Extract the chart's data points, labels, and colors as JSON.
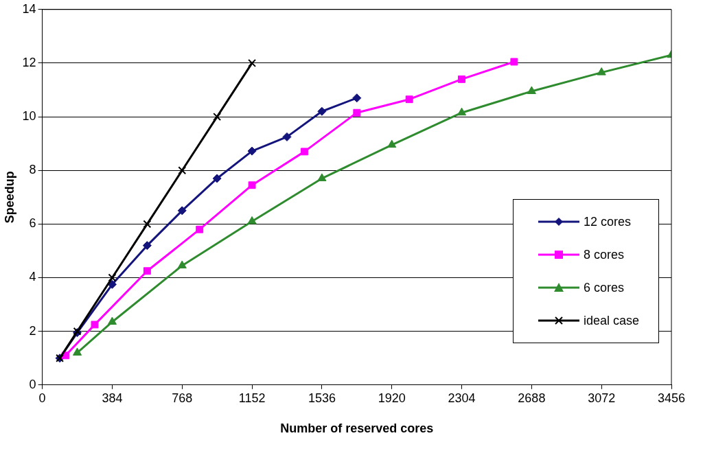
{
  "chart_data": {
    "type": "line",
    "xlabel": "Number of reserved cores",
    "ylabel": "Speedup",
    "xlim": [
      0,
      3456
    ],
    "xticks": [
      0,
      384,
      768,
      1152,
      1536,
      1920,
      2304,
      2688,
      3072,
      3456
    ],
    "ylim": [
      0,
      14
    ],
    "yticks": [
      0,
      2,
      4,
      6,
      8,
      10,
      12,
      14
    ],
    "grid": "y",
    "legend": "right",
    "series": [
      {
        "name": "12 cores",
        "color": "#14147d",
        "marker": "diamond",
        "x": [
          96,
          192,
          384,
          576,
          768,
          960,
          1152,
          1344,
          1536,
          1728
        ],
        "values": [
          1.0,
          1.95,
          3.75,
          5.2,
          6.5,
          7.7,
          8.72,
          9.25,
          10.2,
          10.7
        ]
      },
      {
        "name": "8 cores",
        "color": "#ff00ff",
        "marker": "square",
        "x": [
          128,
          288,
          576,
          864,
          1152,
          1440,
          1728,
          2016,
          2304,
          2592
        ],
        "values": [
          1.1,
          2.25,
          4.25,
          5.8,
          7.45,
          8.7,
          10.15,
          10.65,
          11.4,
          12.05
        ]
      },
      {
        "name": "6 cores",
        "color": "#2e8b2e",
        "marker": "triangle",
        "x": [
          192,
          384,
          768,
          1152,
          1536,
          1920,
          2304,
          2688,
          3072,
          3456
        ],
        "values": [
          1.2,
          2.35,
          4.45,
          6.1,
          7.7,
          8.95,
          10.15,
          10.95,
          11.65,
          12.3
        ]
      },
      {
        "name": "ideal case",
        "color": "#000000",
        "marker": "cross",
        "x": [
          96,
          192,
          384,
          576,
          768,
          960,
          1152
        ],
        "values": [
          1,
          2,
          4,
          6,
          8,
          10,
          12
        ]
      }
    ]
  }
}
